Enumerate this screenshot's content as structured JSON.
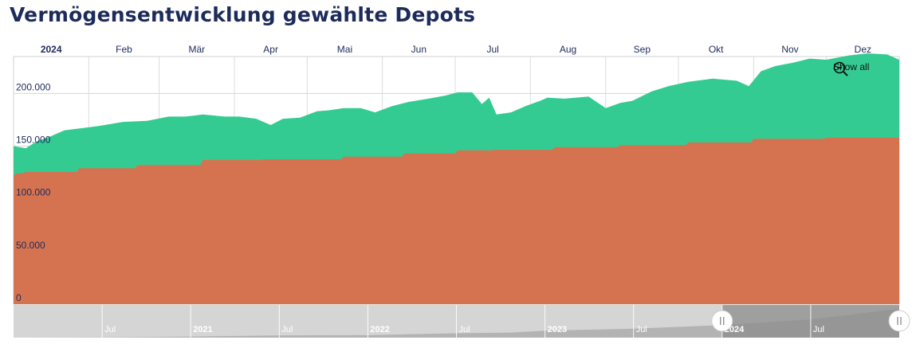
{
  "title": "Vermögensentwicklung gewählte Depots",
  "show_all_label": "Show all",
  "colors": {
    "title": "#1c2b5a",
    "deposits": "#d57350",
    "gains": "#34cb92",
    "navigator_unselected": "#d5d5d5",
    "navigator_selected": "#8c8c8c"
  },
  "chart_data": {
    "type": "area",
    "stacked": true,
    "x_axis_labels": [
      "2024",
      "Feb",
      "Mär",
      "Apr",
      "Mai",
      "Jun",
      "Jul",
      "Aug",
      "Sep",
      "Okt",
      "Nov",
      "Dez"
    ],
    "y_tick_labels": [
      "0",
      "50.000",
      "100.000",
      "150.000",
      "200.000"
    ],
    "ylim": [
      0,
      235000
    ],
    "grid": true,
    "deposits": {
      "x": [
        "2024-01-01",
        "2024-01-02",
        "2024-01-05",
        "2024-01-06",
        "2024-01-27",
        "2024-01-28",
        "2024-02-20",
        "2024-02-21",
        "2024-03-18",
        "2024-03-19",
        "2024-04-12",
        "2024-04-13",
        "2024-05-15",
        "2024-05-16",
        "2024-06-09",
        "2024-06-10",
        "2024-07-01",
        "2024-07-02",
        "2024-07-16",
        "2024-07-17",
        "2024-08-10",
        "2024-08-11",
        "2024-09-06",
        "2024-09-07",
        "2024-10-04",
        "2024-10-05",
        "2024-10-31",
        "2024-11-01",
        "2024-11-30",
        "2024-12-01",
        "2024-12-31"
      ],
      "values": [
        122000,
        124000,
        124500,
        125500,
        125500,
        129000,
        129000,
        132000,
        132000,
        137000,
        137000,
        137500,
        137500,
        140000,
        140000,
        143000,
        143000,
        146000,
        146000,
        146500,
        146500,
        149000,
        149000,
        151000,
        151000,
        153500,
        153500,
        157000,
        157000,
        158000,
        158000
      ]
    },
    "total": {
      "x": [
        "2024-01-01",
        "2024-01-06",
        "2024-01-11",
        "2024-01-15",
        "2024-01-22",
        "2024-01-29",
        "2024-02-05",
        "2024-02-15",
        "2024-02-25",
        "2024-03-05",
        "2024-03-12",
        "2024-03-19",
        "2024-03-28",
        "2024-04-03",
        "2024-04-10",
        "2024-04-16",
        "2024-04-21",
        "2024-04-28",
        "2024-05-05",
        "2024-05-10",
        "2024-05-16",
        "2024-05-23",
        "2024-05-29",
        "2024-06-05",
        "2024-06-12",
        "2024-06-20",
        "2024-06-27",
        "2024-07-02",
        "2024-07-08",
        "2024-07-12",
        "2024-07-15",
        "2024-07-18",
        "2024-07-24",
        "2024-07-30",
        "2024-08-05",
        "2024-08-08",
        "2024-08-15",
        "2024-08-25",
        "2024-09-01",
        "2024-09-07",
        "2024-09-12",
        "2024-09-20",
        "2024-09-27",
        "2024-10-05",
        "2024-10-15",
        "2024-10-25",
        "2024-10-30",
        "2024-11-04",
        "2024-11-10",
        "2024-11-17",
        "2024-11-24",
        "2024-12-01",
        "2024-12-10",
        "2024-12-18",
        "2024-12-26",
        "2024-12-31"
      ],
      "values": [
        150000,
        148000,
        155000,
        158000,
        165000,
        167000,
        169000,
        173000,
        174000,
        178000,
        178000,
        180000,
        178000,
        178000,
        176000,
        170000,
        176000,
        177000,
        183000,
        184000,
        186000,
        186000,
        182000,
        188000,
        192000,
        195000,
        198000,
        201000,
        201000,
        190000,
        196000,
        180000,
        182000,
        188000,
        193000,
        196000,
        195000,
        197000,
        186000,
        191000,
        193000,
        202000,
        207000,
        211000,
        214000,
        212000,
        207000,
        221000,
        226000,
        229000,
        233000,
        232000,
        236000,
        238000,
        237000,
        232000
      ]
    }
  },
  "navigator": {
    "labels": [
      "Jul",
      "2021",
      "Jul",
      "2022",
      "Jul",
      "2023",
      "Jul",
      "2024",
      "Jul"
    ],
    "series": [
      {
        "x": 2020.0,
        "y": 0
      },
      {
        "x": 2020.5,
        "y": 1000
      },
      {
        "x": 2021.0,
        "y": 9000
      },
      {
        "x": 2021.5,
        "y": 18000
      },
      {
        "x": 2022.0,
        "y": 20000
      },
      {
        "x": 2022.5,
        "y": 35000
      },
      {
        "x": 2022.8,
        "y": 40000
      },
      {
        "x": 2023.0,
        "y": 55000
      },
      {
        "x": 2023.5,
        "y": 72000
      },
      {
        "x": 2024.0,
        "y": 100000
      },
      {
        "x": 2024.5,
        "y": 145000
      },
      {
        "x": 2025.0,
        "y": 230000
      }
    ],
    "range_start": 2024.0,
    "range_end": 2025.0
  }
}
